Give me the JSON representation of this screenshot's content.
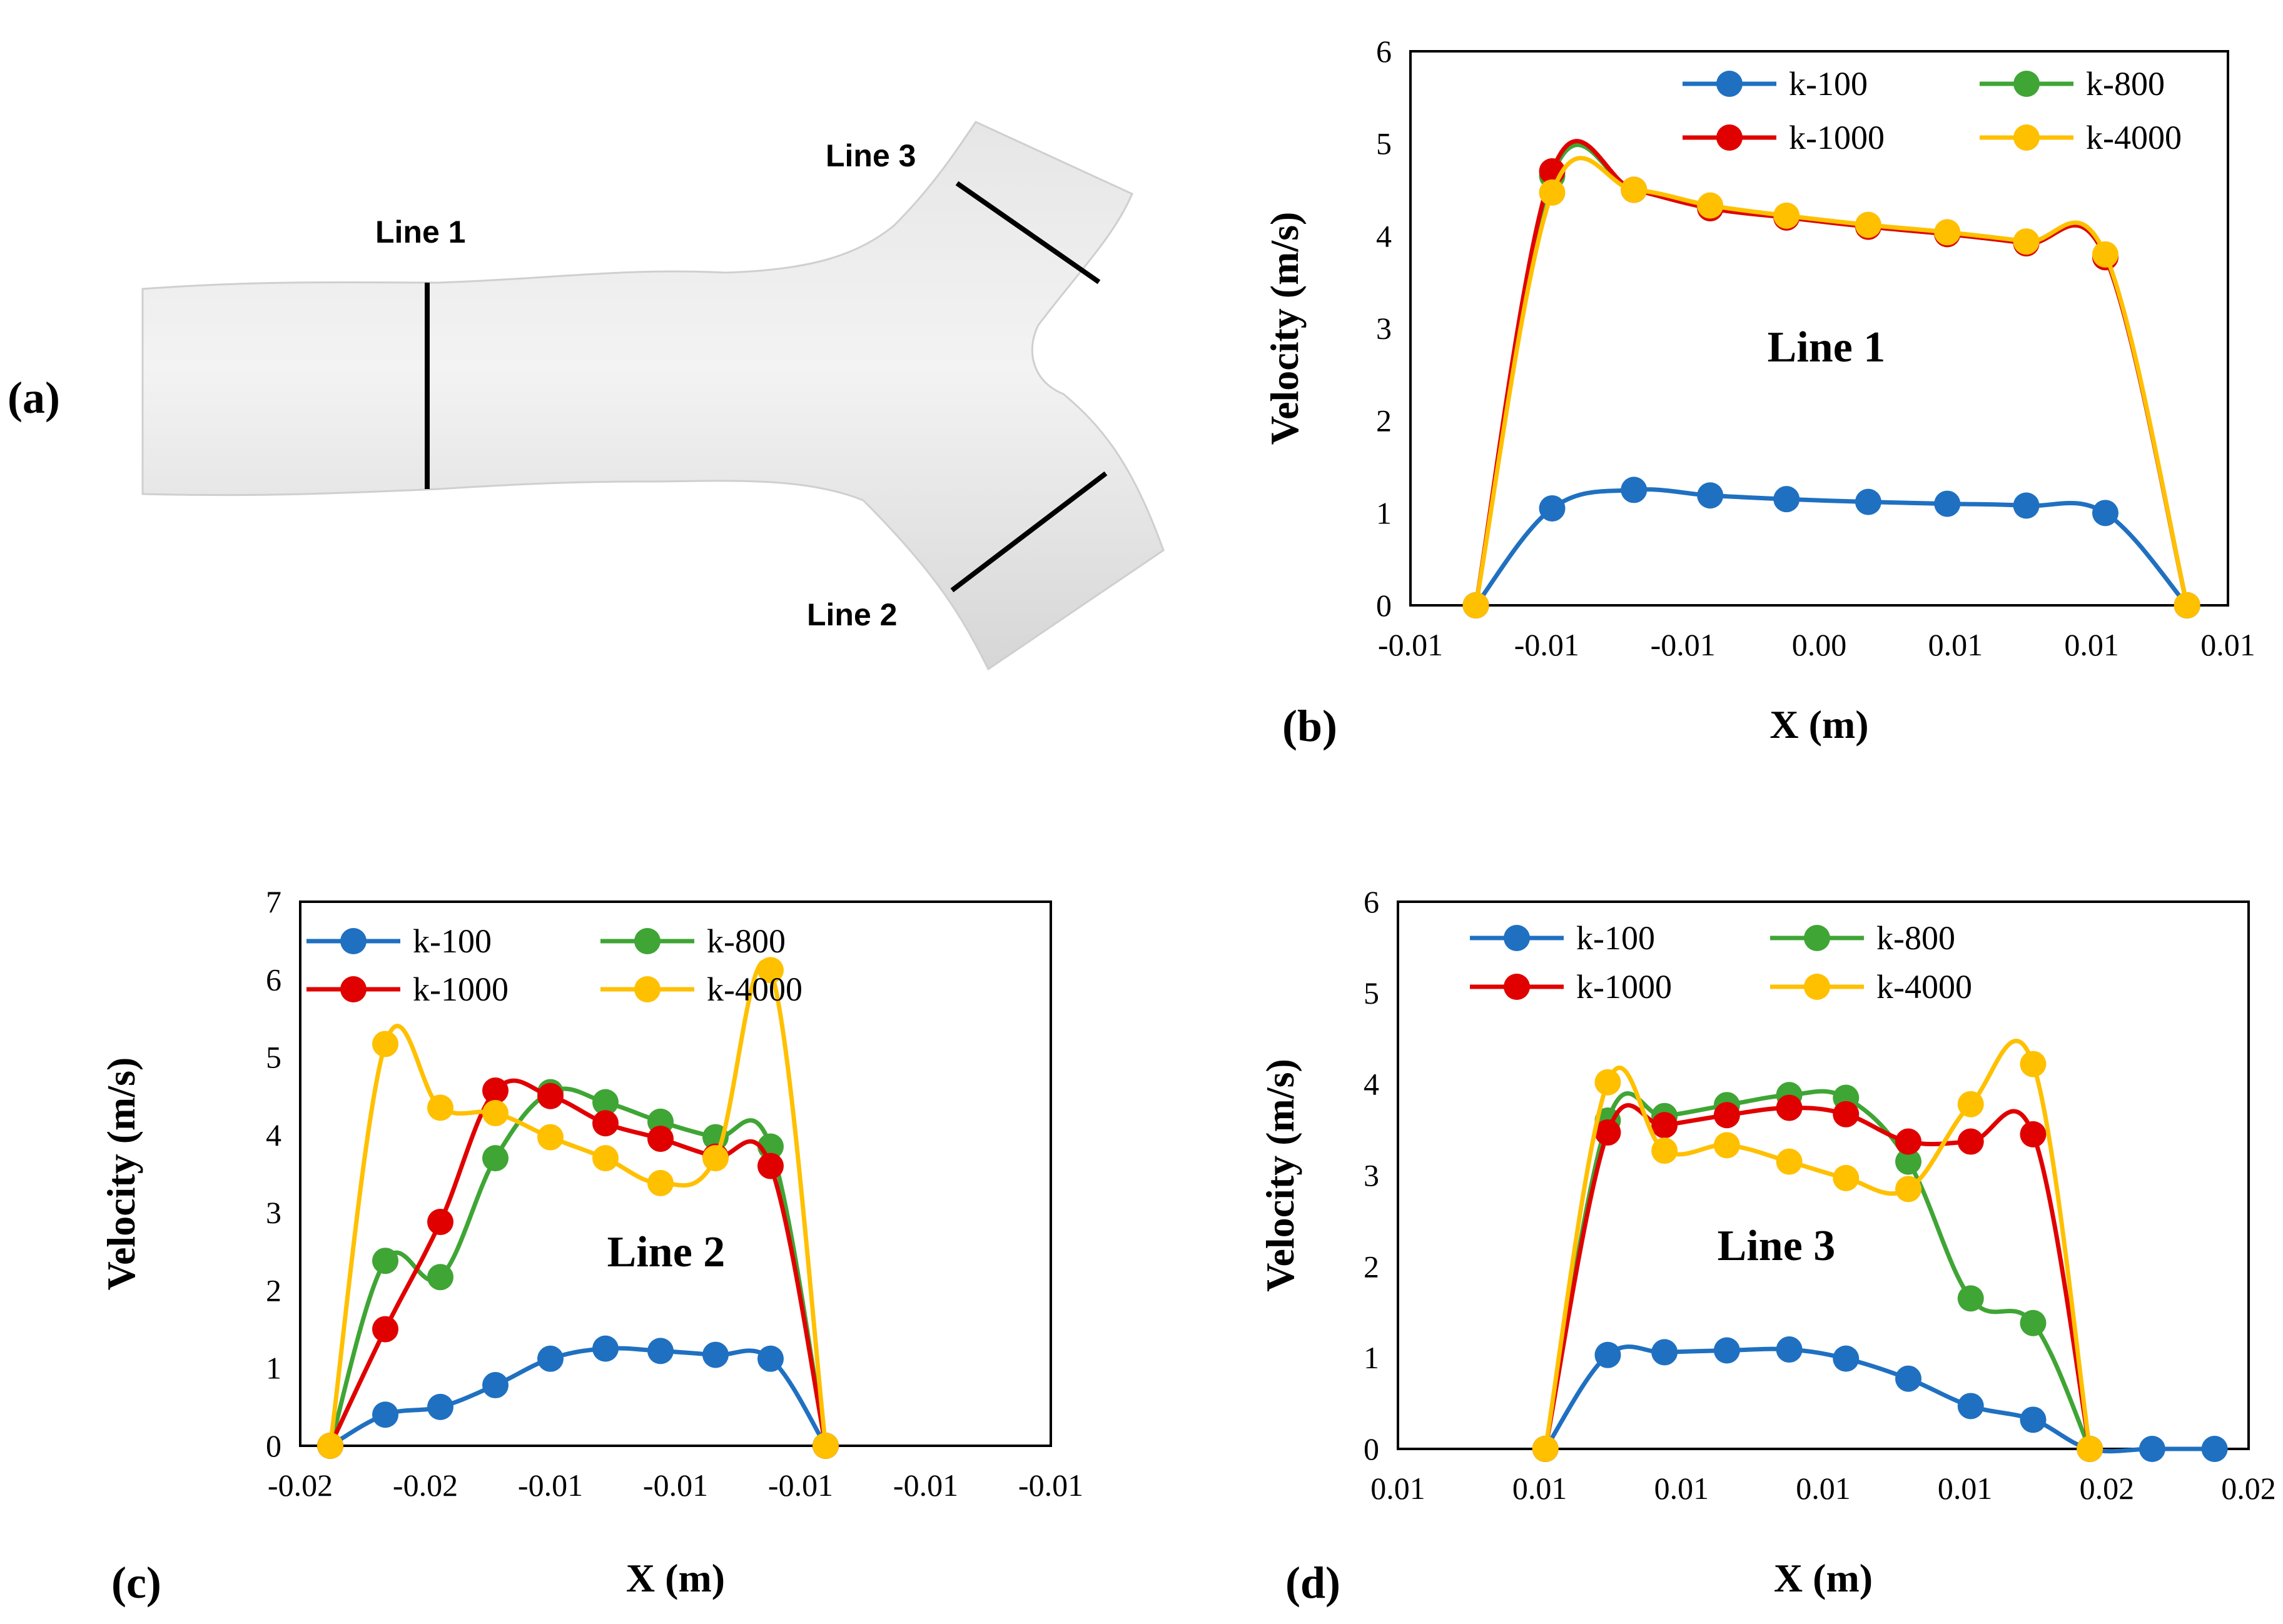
{
  "panel_a": {
    "label": "(a)",
    "line_tags": [
      "Line 1",
      "Line 2",
      "Line 3"
    ]
  },
  "colors": {
    "k100": "#1f70c1",
    "k800": "#3fa535",
    "k1000": "#e00000",
    "k4000": "#ffc000"
  },
  "chart_data": [
    {
      "panel": "(b)",
      "type": "line",
      "title": "Line 1",
      "xlabel": "X (m)",
      "ylabel": "Velocity (m/s)",
      "xlim": [
        -0.015,
        0.015
      ],
      "ylim": [
        0,
        6
      ],
      "xticks": [
        -0.015,
        -0.01,
        -0.005,
        0.0,
        0.005,
        0.01,
        0.015
      ],
      "xtick_labels": [
        "-0.01",
        "-0.01",
        "-0.01",
        "0.00",
        "0.01",
        "0.01",
        "0.01"
      ],
      "yticks": [
        0,
        1,
        2,
        3,
        4,
        5,
        6
      ],
      "ytick_labels": [
        "0",
        "1",
        "2",
        "3",
        "4",
        "5",
        "6"
      ],
      "legend": "top",
      "series": [
        {
          "name": "k-100",
          "color": "#1f70c1",
          "x": [
            -0.0126,
            -0.0098,
            -0.0068,
            -0.004,
            -0.0012,
            0.0018,
            0.0047,
            0.0076,
            0.0105,
            0.0135
          ],
          "y": [
            0,
            1.05,
            1.25,
            1.19,
            1.15,
            1.12,
            1.1,
            1.08,
            1.0,
            0
          ]
        },
        {
          "name": "k-800",
          "color": "#3fa535",
          "x": [
            -0.0126,
            -0.0098,
            -0.0068,
            -0.004,
            -0.0012,
            0.0018,
            0.0047,
            0.0076,
            0.0105,
            0.0135
          ],
          "y": [
            0,
            4.65,
            4.5,
            4.3,
            4.2,
            4.1,
            4.02,
            3.92,
            3.77,
            0
          ]
        },
        {
          "name": "k-1000",
          "color": "#e00000",
          "x": [
            -0.0126,
            -0.0098,
            -0.0068,
            -0.004,
            -0.0012,
            0.0018,
            0.0047,
            0.0076,
            0.0105,
            0.0135
          ],
          "y": [
            0,
            4.7,
            4.5,
            4.3,
            4.2,
            4.1,
            4.02,
            3.92,
            3.77,
            0
          ]
        },
        {
          "name": "k-4000",
          "color": "#ffc000",
          "x": [
            -0.0126,
            -0.0098,
            -0.0068,
            -0.004,
            -0.0012,
            0.0018,
            0.0047,
            0.0076,
            0.0105,
            0.0135
          ],
          "y": [
            0,
            4.47,
            4.5,
            4.33,
            4.22,
            4.12,
            4.04,
            3.94,
            3.8,
            0
          ]
        }
      ]
    },
    {
      "panel": "(c)",
      "type": "line",
      "title": "Line 2",
      "xlabel": "X (m)",
      "ylabel": "Velocity (m/s)",
      "xlim": [
        -0.02,
        -0.005
      ],
      "ylim": [
        0,
        7
      ],
      "xticks": [
        -0.02,
        -0.0175,
        -0.015,
        -0.0125,
        -0.01,
        -0.0075,
        -0.005
      ],
      "xtick_labels": [
        "-0.02",
        "-0.02",
        "-0.01",
        "-0.01",
        "-0.01",
        "-0.01",
        "-0.01"
      ],
      "yticks": [
        0,
        1,
        2,
        3,
        4,
        5,
        6,
        7
      ],
      "ytick_labels": [
        "0",
        "1",
        "2",
        "3",
        "4",
        "5",
        "6",
        "7"
      ],
      "legend": "top",
      "series": [
        {
          "name": "k-100",
          "color": "#1f70c1",
          "x": [
            -0.0194,
            -0.0183,
            -0.0172,
            -0.0161,
            -0.015,
            -0.0139,
            -0.0128,
            -0.0117,
            -0.0106,
            -0.0095
          ],
          "y": [
            0,
            0.4,
            0.5,
            0.78,
            1.12,
            1.25,
            1.22,
            1.17,
            1.12,
            0
          ]
        },
        {
          "name": "k-800",
          "color": "#3fa535",
          "x": [
            -0.0194,
            -0.0183,
            -0.0172,
            -0.0161,
            -0.015,
            -0.0139,
            -0.0128,
            -0.0117,
            -0.0106,
            -0.0095
          ],
          "y": [
            0,
            2.38,
            2.17,
            3.7,
            4.55,
            4.42,
            4.17,
            3.97,
            3.85,
            0
          ]
        },
        {
          "name": "k-1000",
          "color": "#e00000",
          "x": [
            -0.0194,
            -0.0183,
            -0.0172,
            -0.0161,
            -0.015,
            -0.0139,
            -0.0128,
            -0.0117,
            -0.0106,
            -0.0095
          ],
          "y": [
            0,
            1.5,
            2.88,
            4.57,
            4.5,
            4.15,
            3.95,
            3.72,
            3.6,
            0
          ]
        },
        {
          "name": "k-4000",
          "color": "#ffc000",
          "x": [
            -0.0194,
            -0.0183,
            -0.0172,
            -0.0161,
            -0.015,
            -0.0139,
            -0.0128,
            -0.0117,
            -0.0106,
            -0.0095
          ],
          "y": [
            0,
            5.17,
            4.35,
            4.28,
            3.97,
            3.7,
            3.38,
            3.7,
            6.12,
            0
          ]
        }
      ]
    },
    {
      "panel": "(d)",
      "type": "line",
      "title": "Line 3",
      "xlabel": "X (m)",
      "ylabel": "Velocity (m/s)",
      "xlim": [
        0.005,
        0.02
      ],
      "ylim": [
        0,
        6
      ],
      "xticks": [
        0.005,
        0.0075,
        0.01,
        0.0125,
        0.015,
        0.0175,
        0.02
      ],
      "xtick_labels": [
        "0.01",
        "0.01",
        "0.01",
        "0.01",
        "0.01",
        "0.02",
        "0.02"
      ],
      "yticks": [
        0,
        1,
        2,
        3,
        4,
        5,
        6
      ],
      "ytick_labels": [
        "0",
        "1",
        "2",
        "3",
        "4",
        "5",
        "6"
      ],
      "legend": "top",
      "series": [
        {
          "name": "k-100",
          "color": "#1f70c1",
          "x": [
            0.0076,
            0.0087,
            0.0097,
            0.0108,
            0.0119,
            0.0129,
            0.014,
            0.0151,
            0.0162,
            0.0172,
            0.0183,
            0.0194
          ],
          "y": [
            0,
            1.03,
            1.06,
            1.08,
            1.09,
            0.99,
            0.77,
            0.47,
            0.32,
            0,
            0,
            0
          ]
        },
        {
          "name": "k-800",
          "color": "#3fa535",
          "x": [
            0.0076,
            0.0087,
            0.0097,
            0.0108,
            0.0119,
            0.0129,
            0.014,
            0.0151,
            0.0162,
            0.0172
          ],
          "y": [
            0,
            3.6,
            3.65,
            3.77,
            3.88,
            3.85,
            3.15,
            1.65,
            1.38,
            0
          ]
        },
        {
          "name": "k-1000",
          "color": "#e00000",
          "x": [
            0.0076,
            0.0087,
            0.0097,
            0.0108,
            0.0119,
            0.0129,
            0.014,
            0.0151,
            0.0162,
            0.0172
          ],
          "y": [
            0,
            3.47,
            3.55,
            3.66,
            3.74,
            3.67,
            3.37,
            3.37,
            3.45,
            0
          ]
        },
        {
          "name": "k-4000",
          "color": "#ffc000",
          "x": [
            0.0076,
            0.0087,
            0.0097,
            0.0108,
            0.0119,
            0.0129,
            0.014,
            0.0151,
            0.0162,
            0.0172
          ],
          "y": [
            0,
            4.02,
            3.27,
            3.33,
            3.15,
            2.97,
            2.85,
            3.78,
            4.22,
            0
          ]
        }
      ]
    }
  ]
}
